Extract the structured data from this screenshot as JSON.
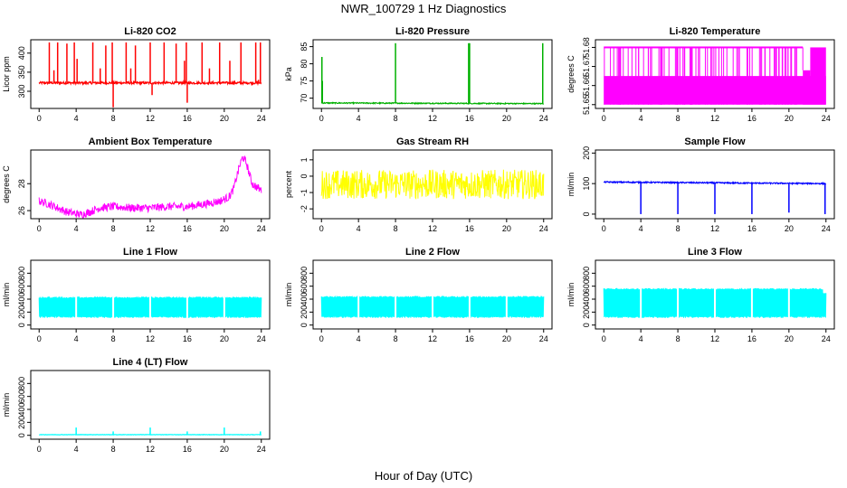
{
  "figure": {
    "title": "NWR_100729  1 Hz Diagnostics",
    "xlabel": "Hour of Day (UTC)"
  },
  "chart_data": [
    {
      "type": "line",
      "title": "Li-820 CO2",
      "ylabel": "Licor ppm",
      "color": "#ff0000",
      "xlim": [
        0,
        24
      ],
      "ylim": [
        255,
        435
      ],
      "xticks": [
        0,
        4,
        8,
        12,
        16,
        20,
        24
      ],
      "yticks": [
        300,
        350,
        400
      ],
      "series": [
        {
          "baseline": 322,
          "noise": 3,
          "min": 258,
          "max": 428,
          "spikes": [
            [
              1.1,
              428
            ],
            [
              1.6,
              355
            ],
            [
              2.0,
              428
            ],
            [
              3.0,
              425
            ],
            [
              3.8,
              428
            ],
            [
              4.1,
              385
            ],
            [
              5.8,
              428
            ],
            [
              6.6,
              360
            ],
            [
              7.2,
              420
            ],
            [
              7.9,
              428
            ],
            [
              8.0,
              258
            ],
            [
              9.4,
              428
            ],
            [
              9.9,
              360
            ],
            [
              10.4,
              420
            ],
            [
              12.0,
              428
            ],
            [
              12.2,
              290
            ],
            [
              13.5,
              428
            ],
            [
              14.8,
              425
            ],
            [
              15.7,
              380
            ],
            [
              15.9,
              428
            ],
            [
              16.0,
              270
            ],
            [
              17.6,
              428
            ],
            [
              18.4,
              360
            ],
            [
              19.5,
              428
            ],
            [
              20.6,
              380
            ],
            [
              21.8,
              428
            ],
            [
              23.4,
              428
            ],
            [
              23.7,
              330
            ],
            [
              23.9,
              428
            ]
          ]
        }
      ]
    },
    {
      "type": "line",
      "title": "Li-820 Pressure",
      "ylabel": "kPa",
      "color": "#00b000",
      "xlim": [
        0,
        24
      ],
      "ylim": [
        67,
        87
      ],
      "xticks": [
        0,
        4,
        8,
        12,
        16,
        20,
        24
      ],
      "yticks": [
        70,
        75,
        80,
        85
      ],
      "series": [
        {
          "baseline": 68.6,
          "baseline_end": 68.4,
          "noise": 0.15,
          "spikes": [
            [
              0.05,
              82
            ],
            [
              0.1,
              75
            ],
            [
              8.0,
              86
            ],
            [
              15.9,
              86
            ],
            [
              16.0,
              86
            ],
            [
              23.9,
              86
            ]
          ]
        }
      ]
    },
    {
      "type": "line",
      "title": "Li-820 Temperature",
      "ylabel": "degrees C",
      "color": "#ff00ff",
      "xlim": [
        0,
        24
      ],
      "ylim": [
        51.648,
        51.684
      ],
      "xticks": [
        0,
        4,
        8,
        12,
        16,
        20,
        24
      ],
      "yticks": [
        51.65,
        51.66,
        51.67,
        51.68
      ],
      "levels": [
        51.65,
        51.68,
        51.668
      ],
      "series": [
        {
          "pattern": "two-level toggling",
          "low": 51.65,
          "high": 51.68,
          "drop_to": 51.668,
          "drop_range": [
            21.5,
            22.3
          ]
        }
      ]
    },
    {
      "type": "line",
      "title": "Ambient Box Temperature",
      "ylabel": "degrees C",
      "color": "#ff00ff",
      "xlim": [
        0,
        24
      ],
      "ylim": [
        25.4,
        30.5
      ],
      "xticks": [
        0,
        4,
        8,
        12,
        16,
        20,
        24
      ],
      "yticks": [
        26,
        28
      ],
      "series": [
        {
          "noise": 0.3,
          "points": [
            [
              0,
              26.7
            ],
            [
              1,
              26.5
            ],
            [
              2,
              26.2
            ],
            [
              3,
              25.9
            ],
            [
              4.5,
              25.7
            ],
            [
              5.5,
              25.9
            ],
            [
              6.5,
              26.2
            ],
            [
              8,
              26.3
            ],
            [
              10,
              26.2
            ],
            [
              12,
              26.2
            ],
            [
              14,
              26.3
            ],
            [
              16,
              26.3
            ],
            [
              18,
              26.5
            ],
            [
              19.5,
              26.7
            ],
            [
              20.5,
              27.0
            ],
            [
              21,
              27.6
            ],
            [
              21.6,
              29.2
            ],
            [
              22,
              30.0
            ],
            [
              22.4,
              29.5
            ],
            [
              23,
              28.0
            ],
            [
              24,
              27.5
            ]
          ]
        }
      ]
    },
    {
      "type": "line",
      "title": "Gas Stream RH",
      "ylabel": "percent",
      "color": "#ffff00",
      "xlim": [
        0,
        24
      ],
      "ylim": [
        -2.6,
        1.6
      ],
      "xticks": [
        0,
        4,
        8,
        12,
        16,
        20,
        24
      ],
      "yticks": [
        -2,
        -1,
        0,
        1
      ],
      "series": [
        {
          "band": [
            -2.4,
            1.3
          ],
          "center": -0.5,
          "noise": 0.9
        }
      ]
    },
    {
      "type": "line",
      "title": "Sample Flow",
      "ylabel": "ml/min",
      "color": "#0000ff",
      "xlim": [
        0,
        24
      ],
      "ylim": [
        -15,
        210
      ],
      "xticks": [
        0,
        4,
        8,
        12,
        16,
        20,
        24
      ],
      "yticks": [
        0,
        100,
        200
      ],
      "series": [
        {
          "baseline": 105,
          "baseline_end": 100,
          "noise": 2,
          "spikes": [
            [
              4.0,
              0
            ],
            [
              8.0,
              0
            ],
            [
              12.0,
              0
            ],
            [
              16.0,
              0
            ],
            [
              20.0,
              5
            ],
            [
              23.9,
              0
            ]
          ]
        }
      ]
    },
    {
      "type": "line",
      "title": "Line 1 Flow",
      "ylabel": "ml/min",
      "color": "#00ffff",
      "xlim": [
        0,
        24
      ],
      "ylim": [
        -60,
        1000
      ],
      "xticks": [
        0,
        4,
        8,
        12,
        16,
        20,
        24
      ],
      "yticks": [
        0,
        200,
        400,
        600,
        800
      ],
      "series": [
        {
          "band": [
            110,
            440
          ],
          "gaps": [
            4,
            8,
            12,
            16,
            20
          ],
          "gap_low": 110
        }
      ]
    },
    {
      "type": "line",
      "title": "Line 2 Flow",
      "ylabel": "ml/min",
      "color": "#00ffff",
      "xlim": [
        0,
        24
      ],
      "ylim": [
        -60,
        1000
      ],
      "xticks": [
        0,
        4,
        8,
        12,
        16,
        20,
        24
      ],
      "yticks": [
        0,
        200,
        400,
        600,
        800
      ],
      "series": [
        {
          "band": [
            110,
            450
          ],
          "gaps": [
            4,
            8,
            12,
            16,
            20
          ],
          "gap_low": 110
        }
      ]
    },
    {
      "type": "line",
      "title": "Line 3 Flow",
      "ylabel": "ml/min",
      "color": "#00ffff",
      "xlim": [
        0,
        24
      ],
      "ylim": [
        -60,
        1000
      ],
      "xticks": [
        0,
        4,
        8,
        12,
        16,
        20,
        24
      ],
      "yticks": [
        0,
        200,
        400,
        600,
        800
      ],
      "series": [
        {
          "band": [
            110,
            570
          ],
          "gaps": [
            4,
            8,
            12,
            16,
            20
          ],
          "gap_low": 110,
          "end_drop": [
            23.7,
            500
          ]
        }
      ]
    },
    {
      "type": "line",
      "title": "Line 4 (LT) Flow",
      "ylabel": "ml/min",
      "color": "#00ffff",
      "xlim": [
        0,
        24
      ],
      "ylim": [
        -60,
        1000
      ],
      "xticks": [
        0,
        4,
        8,
        12,
        16,
        20,
        24
      ],
      "yticks": [
        0,
        200,
        400,
        600,
        800
      ],
      "series": [
        {
          "baseline": 10,
          "noise": 3,
          "spikes": [
            [
              4.0,
              120
            ],
            [
              8.0,
              60
            ],
            [
              12.0,
              120
            ],
            [
              16.0,
              60
            ],
            [
              20.0,
              120
            ],
            [
              23.9,
              60
            ]
          ]
        }
      ]
    }
  ]
}
